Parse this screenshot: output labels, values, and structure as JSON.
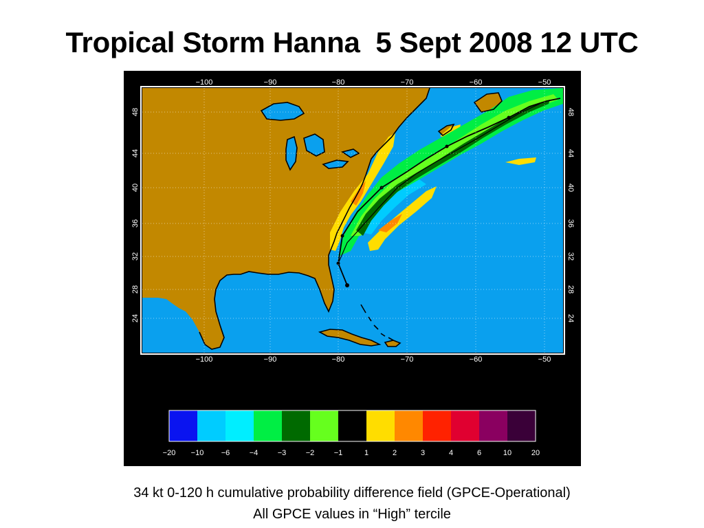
{
  "slide": {
    "title": "Tropical Storm Hanna  5 Sept 2008 12 UTC",
    "caption_line1": "34 kt 0-120 h cumulative probability difference field (GPCE-Operational)",
    "caption_line2": "All GPCE values in “High” tercile"
  },
  "map": {
    "lon_ticks": [
      "−100",
      "−90",
      "−80",
      "−70",
      "−60",
      "−50"
    ],
    "lat_ticks": [
      "48",
      "44",
      "40",
      "36",
      "32",
      "28",
      "24"
    ],
    "colors": {
      "land": "#c28800",
      "ocean": "#0aa0ee",
      "coastline": "#000000",
      "track": "#000000"
    }
  },
  "colorbar": {
    "tick_labels": [
      "−20",
      "−10",
      "−6",
      "−4",
      "−3",
      "−2",
      "−1",
      "1",
      "2",
      "3",
      "4",
      "6",
      "10",
      "20"
    ],
    "colors": [
      "#0a14f0",
      "#00ccff",
      "#00eeff",
      "#00ee44",
      "#006a00",
      "#66ff1e",
      "#000000",
      "#ffdd00",
      "#ff8800",
      "#ff2200",
      "#e00030",
      "#8a0060",
      "#3a0038"
    ]
  }
}
